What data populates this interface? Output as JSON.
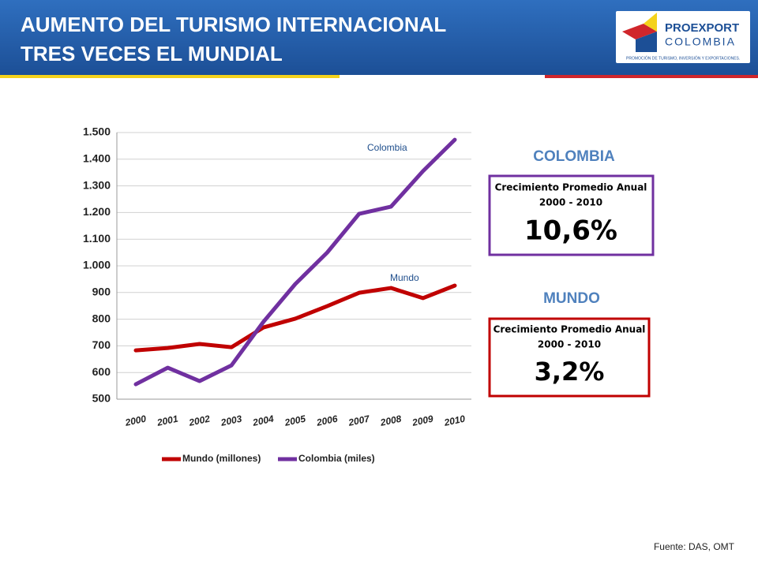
{
  "header": {
    "title_lines": [
      "AUMENTO DEL TURISMO INTERNACIONAL",
      "TRES VECES EL MUNDIAL"
    ]
  },
  "logo": {
    "name": "PROEXPORT",
    "country": "COLOMBIA",
    "tagline": "PROMOCIÓN DE TURISMO, INVERSIÓN Y EXPORTACIONES."
  },
  "chart_data": {
    "type": "line",
    "categories": [
      "2000",
      "2001",
      "2002",
      "2003",
      "2004",
      "2005",
      "2006",
      "2007",
      "2008",
      "2009",
      "2010"
    ],
    "series": [
      {
        "name": "Mundo (millones)",
        "color": "#c00000",
        "values": [
          683,
          692,
          707,
          695,
          769,
          802,
          849,
          899,
          917,
          879,
          926
        ]
      },
      {
        "name": "Colombia (miles)",
        "color": "#7030a0",
        "values": [
          556,
          618,
          568,
          627,
          790,
          932,
          1050,
          1195,
          1222,
          1355,
          1473
        ]
      }
    ],
    "annotations": [
      "Colombia",
      "Mundo"
    ],
    "ylim": [
      500,
      1500
    ],
    "yticks": [
      500,
      600,
      700,
      800,
      900,
      {
        "value": 1000,
        "label": "1.000"
      },
      {
        "value": 1100,
        "label": "1.100"
      },
      {
        "value": 1200,
        "label": "1.200"
      },
      {
        "value": 1300,
        "label": "1.300"
      },
      {
        "value": 1400,
        "label": "1.400"
      },
      {
        "value": 1500,
        "label": "1.500"
      }
    ],
    "grid": true,
    "legend": "bottom"
  },
  "boxes": [
    {
      "heading": "COLOMBIA",
      "label": "Crecimiento Promedio Anual",
      "period": "2000 - 2010",
      "value": "10,6%"
    },
    {
      "heading": "MUNDO",
      "label": "Crecimiento Promedio Anual",
      "period": "2000 - 2010",
      "value": "3,2%"
    }
  ],
  "source": "Fuente: DAS, OMT"
}
